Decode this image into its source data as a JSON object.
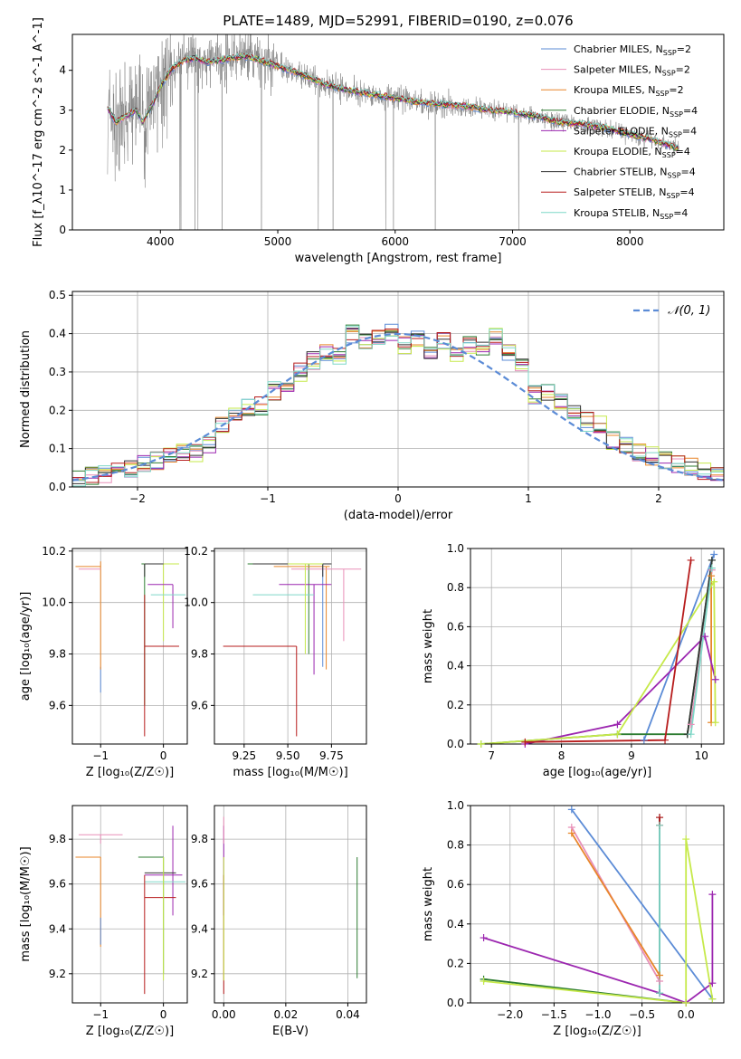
{
  "figure": {
    "title": "PLATE=1489, MJD=52991, FIBERID=0190, z=0.076"
  },
  "series_styles": [
    {
      "name": "Chabrier MILES",
      "nssp": "2",
      "color": "#5b8bd6"
    },
    {
      "name": "Salpeter MILES",
      "nssp": "2",
      "color": "#e88fb8"
    },
    {
      "name": "Kroupa MILES",
      "nssp": "2",
      "color": "#e8862a"
    },
    {
      "name": "Chabrier ELODIE",
      "nssp": "4",
      "color": "#2e7d32"
    },
    {
      "name": "Salpeter ELODIE",
      "nssp": "4",
      "color": "#9c27b0"
    },
    {
      "name": "Kroupa ELODIE",
      "nssp": "4",
      "color": "#c6e94a"
    },
    {
      "name": "Chabrier STELIB",
      "nssp": "4",
      "color": "#333333"
    },
    {
      "name": "Salpeter STELIB",
      "nssp": "4",
      "color": "#b71c1c"
    },
    {
      "name": "Kroupa STELIB",
      "nssp": "4",
      "color": "#7fd8c8"
    }
  ],
  "chart_data": [
    {
      "id": "spectrum",
      "type": "line",
      "xlabel": "wavelength [Angstrom, rest frame]",
      "ylabel": "Flux [f_λ10^-17 erg cm^-2 s^-1 A^-1]",
      "xlim": [
        3250,
        8800
      ],
      "ylim": [
        0,
        4.9
      ],
      "xticks": [
        4000,
        5000,
        6000,
        7000,
        8000
      ],
      "yticks": [
        0,
        1,
        2,
        3,
        4
      ],
      "data_color": "#808080",
      "model_continuum": {
        "x": [
          3550,
          3620,
          3700,
          3800,
          3850,
          3950,
          4000,
          4100,
          4200,
          4300,
          4400,
          4500,
          4600,
          4700,
          4800,
          4900,
          5000,
          5200,
          5400,
          5600,
          5800,
          6000,
          6200,
          6400,
          6600,
          6800,
          7000,
          7200,
          7400,
          7600,
          7800,
          8000,
          8200,
          8400
        ],
        "y": [
          3.05,
          2.7,
          2.85,
          3.0,
          2.7,
          3.25,
          3.6,
          4.05,
          4.25,
          4.3,
          4.2,
          4.25,
          4.3,
          4.35,
          4.3,
          4.2,
          4.1,
          3.9,
          3.65,
          3.5,
          3.4,
          3.3,
          3.2,
          3.15,
          3.1,
          3.0,
          2.95,
          2.85,
          2.7,
          2.65,
          2.55,
          2.4,
          2.25,
          2.05
        ]
      },
      "legend": "upper right"
    },
    {
      "id": "residual-histogram",
      "type": "line",
      "xlabel": "(data-model)/error",
      "ylabel": "Normed distribution",
      "xlim": [
        -2.5,
        2.5
      ],
      "ylim": [
        0,
        0.51
      ],
      "xticks": [
        -2,
        -1,
        0,
        1,
        2
      ],
      "yticks": [
        0.0,
        0.1,
        0.2,
        0.3,
        0.4,
        0.5
      ],
      "grid": true,
      "bins": [
        -2.5,
        -2.4,
        -2.3,
        -2.2,
        -2.1,
        -2.0,
        -1.9,
        -1.8,
        -1.7,
        -1.6,
        -1.5,
        -1.4,
        -1.3,
        -1.2,
        -1.1,
        -1.0,
        -0.9,
        -0.8,
        -0.7,
        -0.6,
        -0.5,
        -0.4,
        -0.3,
        -0.2,
        -0.1,
        0.0,
        0.1,
        0.2,
        0.3,
        0.4,
        0.5,
        0.6,
        0.7,
        0.8,
        0.9,
        1.0,
        1.1,
        1.2,
        1.3,
        1.4,
        1.5,
        1.6,
        1.7,
        1.8,
        1.9,
        2.0,
        2.1,
        2.2,
        2.3,
        2.4
      ],
      "hist_base": [
        0.02,
        0.03,
        0.035,
        0.04,
        0.045,
        0.06,
        0.07,
        0.08,
        0.09,
        0.09,
        0.11,
        0.16,
        0.19,
        0.21,
        0.21,
        0.25,
        0.27,
        0.3,
        0.33,
        0.35,
        0.34,
        0.4,
        0.38,
        0.39,
        0.4,
        0.37,
        0.39,
        0.36,
        0.38,
        0.35,
        0.37,
        0.36,
        0.39,
        0.35,
        0.32,
        0.24,
        0.25,
        0.22,
        0.2,
        0.17,
        0.16,
        0.12,
        0.11,
        0.09,
        0.08,
        0.07,
        0.06,
        0.05,
        0.04,
        0.03
      ],
      "reference_curve": {
        "name": "𝒩(0, 1)",
        "color": "#5b8bd6",
        "style": "dashed"
      },
      "legend": "upper right"
    },
    {
      "id": "age-vs-Z",
      "type": "scatter",
      "xlabel": "Z [log₁₀(Z/Z☉)]",
      "ylabel": "age  [log₁₀(age/yr)]",
      "xlim": [
        -1.45,
        0.38
      ],
      "ylim": [
        9.45,
        10.21
      ],
      "xticks": [
        -1,
        0
      ],
      "yticks": [
        9.6,
        9.8,
        10.0,
        10.2
      ],
      "grid": true,
      "points": [
        {
          "series": 0,
          "x": -1.0,
          "y": 9.75,
          "xerr": [
            0,
            0
          ],
          "yerr": [
            0.1,
            0
          ]
        },
        {
          "series": 2,
          "x": -1.0,
          "y": 10.14,
          "xerr": [
            0.4,
            0.0
          ],
          "yerr": [
            0.4,
            0.02
          ]
        },
        {
          "series": 1,
          "x": -1.0,
          "y": 10.13,
          "xerr": [
            0.35,
            0
          ],
          "yerr": [
            0,
            0
          ]
        },
        {
          "series": 3,
          "x": -0.3,
          "y": 10.15,
          "xerr": [
            0.05,
            0.35
          ],
          "yerr": [
            0.55,
            0
          ]
        },
        {
          "series": 5,
          "x": 0.0,
          "y": 10.15,
          "xerr": [
            0.3,
            0.25
          ],
          "yerr": [
            0.3,
            0
          ]
        },
        {
          "series": 4,
          "x": 0.15,
          "y": 10.07,
          "xerr": [
            0.4,
            0.0
          ],
          "yerr": [
            0.17,
            0.0
          ]
        },
        {
          "series": 8,
          "x": 0.1,
          "y": 10.03,
          "xerr": [
            0.3,
            0.25
          ],
          "yerr": [
            0,
            0
          ]
        },
        {
          "series": 7,
          "x": -0.3,
          "y": 9.83,
          "xerr": [
            0,
            0.55
          ],
          "yerr": [
            0.35,
            0.2
          ]
        },
        {
          "series": 6,
          "x": -0.3,
          "y": 10.15,
          "xerr": [
            0.0,
            0.3
          ],
          "yerr": [
            0.05,
            0
          ]
        }
      ]
    },
    {
      "id": "age-vs-mass",
      "type": "scatter",
      "xlabel": "mass [log₁₀(M/M☉)]",
      "ylabel": "",
      "xlim": [
        9.08,
        9.95
      ],
      "ylim": [
        9.45,
        10.21
      ],
      "xticks": [
        9.25,
        9.5,
        9.75
      ],
      "xticklabels": [
        "9.25",
        "9.50",
        "9.75"
      ],
      "yticks": [
        9.6,
        9.8,
        10.0,
        10.2
      ],
      "grid": true,
      "points": [
        {
          "series": 3,
          "x": 9.62,
          "y": 10.15,
          "xerr": [
            0.35,
            0.1
          ],
          "yerr": [
            0.35,
            0
          ]
        },
        {
          "series": 2,
          "x": 9.72,
          "y": 10.14,
          "xerr": [
            0.3,
            0.02
          ],
          "yerr": [
            0.4,
            0
          ]
        },
        {
          "series": 1,
          "x": 9.82,
          "y": 10.13,
          "xerr": [
            0.3,
            0.1
          ],
          "yerr": [
            0.28,
            0.0
          ]
        },
        {
          "series": 0,
          "x": 9.7,
          "y": 10.05,
          "xerr": [
            0,
            0
          ],
          "yerr": [
            0.3,
            0.1
          ]
        },
        {
          "series": 4,
          "x": 9.65,
          "y": 10.07,
          "xerr": [
            0.2,
            0.1
          ],
          "yerr": [
            0.35,
            0
          ]
        },
        {
          "series": 8,
          "x": 9.6,
          "y": 10.03,
          "xerr": [
            0.3,
            0.05
          ],
          "yerr": [
            0,
            0
          ]
        },
        {
          "series": 7,
          "x": 9.55,
          "y": 9.83,
          "xerr": [
            0.42,
            0.0
          ],
          "yerr": [
            0.35,
            0.0
          ]
        },
        {
          "series": 6,
          "x": 9.7,
          "y": 10.15,
          "xerr": [
            0.4,
            0.05
          ],
          "yerr": [
            0.05,
            0
          ]
        },
        {
          "series": 5,
          "x": 9.6,
          "y": 10.15,
          "xerr": [
            0.1,
            0.1
          ],
          "yerr": [
            0.35,
            0
          ]
        }
      ]
    },
    {
      "id": "mass-weight-vs-age",
      "type": "line",
      "xlabel": "age  [log₁₀(age/yr)]",
      "ylabel": "mass weight",
      "xlim": [
        6.7,
        10.32
      ],
      "ylim": [
        0,
        1.0
      ],
      "xticks": [
        7,
        8,
        9,
        10
      ],
      "yticks": [
        0.0,
        0.2,
        0.4,
        0.6,
        0.8,
        1.0
      ],
      "grid": true,
      "series": [
        {
          "series": 0,
          "x": [
            9.18,
            10.18
          ],
          "y": [
            0.02,
            0.97
          ]
        },
        {
          "series": 1,
          "x": [
            9.85,
            10.15
          ],
          "y": [
            0.1,
            0.89
          ]
        },
        {
          "series": 2,
          "x": [
            10.14,
            10.14
          ],
          "y": [
            0.86,
            0.11
          ]
        },
        {
          "series": 3,
          "x": [
            6.85,
            8.8,
            9.8,
            10.15
          ],
          "y": [
            0.0,
            0.05,
            0.05,
            0.94
          ]
        },
        {
          "series": 4,
          "x": [
            7.48,
            8.8,
            10.05,
            10.2
          ],
          "y": [
            0.0,
            0.1,
            0.55,
            0.33
          ]
        },
        {
          "series": 5,
          "x": [
            6.85,
            8.8,
            10.18,
            10.2
          ],
          "y": [
            0.0,
            0.05,
            0.83,
            0.11
          ]
        },
        {
          "series": 6,
          "x": [
            9.8,
            10.15
          ],
          "y": [
            0.05,
            0.94
          ]
        },
        {
          "series": 7,
          "x": [
            7.48,
            9.48,
            9.85
          ],
          "y": [
            0.01,
            0.02,
            0.94
          ]
        },
        {
          "series": 8,
          "x": [
            9.85,
            10.15
          ],
          "y": [
            0.05,
            0.9
          ]
        }
      ]
    },
    {
      "id": "mass-vs-Z",
      "type": "scatter",
      "xlabel": "Z [log₁₀(Z/Z☉)]",
      "ylabel": "mass [log₁₀(M/M☉)]",
      "xlim": [
        -1.45,
        0.38
      ],
      "ylim": [
        9.07,
        9.95
      ],
      "xticks": [
        -1,
        0
      ],
      "yticks": [
        9.2,
        9.4,
        9.6,
        9.8
      ],
      "grid": true,
      "points": [
        {
          "series": 1,
          "x": -1.0,
          "y": 9.82,
          "xerr": [
            0.35,
            0.35
          ],
          "yerr": [
            0.04,
            0
          ]
        },
        {
          "series": 2,
          "x": -1.0,
          "y": 9.72,
          "xerr": [
            0.4,
            0.0
          ],
          "yerr": [
            0.4,
            0
          ]
        },
        {
          "series": 0,
          "x": -1.0,
          "y": 9.45,
          "xerr": [
            0,
            0
          ],
          "yerr": [
            0.12,
            0
          ]
        },
        {
          "series": 3,
          "x": 0.0,
          "y": 9.72,
          "xerr": [
            0.4,
            0.0
          ],
          "yerr": [
            0.52,
            0
          ]
        },
        {
          "series": 4,
          "x": 0.15,
          "y": 9.64,
          "xerr": [
            0.45,
            0.15
          ],
          "yerr": [
            0.18,
            0.22
          ]
        },
        {
          "series": 8,
          "x": 0.05,
          "y": 9.61,
          "xerr": [
            0.35,
            0.3
          ],
          "yerr": [
            0,
            0
          ]
        },
        {
          "series": 7,
          "x": -0.3,
          "y": 9.54,
          "xerr": [
            0,
            0.5
          ],
          "yerr": [
            0.43,
            0.1
          ]
        },
        {
          "series": 6,
          "x": -0.3,
          "y": 9.65,
          "xerr": [
            0,
            0.5
          ],
          "yerr": [
            0,
            0
          ]
        },
        {
          "series": 5,
          "x": 0.0,
          "y": 9.72,
          "xerr": [
            0,
            0
          ],
          "yerr": [
            0.55,
            0
          ]
        }
      ]
    },
    {
      "id": "mass-vs-EBV",
      "type": "scatter",
      "xlabel": "E(B-V)",
      "ylabel": "",
      "xlim": [
        -0.003,
        0.046
      ],
      "ylim": [
        9.07,
        9.95
      ],
      "xticks": [
        0.0,
        0.02,
        0.04
      ],
      "xticklabels": [
        "0.00",
        "0.02",
        "0.04"
      ],
      "yticks": [
        9.2,
        9.4,
        9.6,
        9.8
      ],
      "grid": true,
      "points": [
        {
          "series": 4,
          "x": 0.0,
          "y": 9.64,
          "xerr": [
            0,
            0
          ],
          "yerr": [
            0.18,
            0.22
          ]
        },
        {
          "series": 7,
          "x": 0.0,
          "y": 9.54,
          "xerr": [
            0,
            0
          ],
          "yerr": [
            0.43,
            0.1
          ]
        },
        {
          "series": 1,
          "x": 0.0,
          "y": 9.82,
          "xerr": [
            0,
            0
          ],
          "yerr": [
            0.04,
            0.08
          ]
        },
        {
          "series": 3,
          "x": 0.043,
          "y": 9.45,
          "xerr": [
            0,
            0
          ],
          "yerr": [
            0.27,
            0.27
          ]
        },
        {
          "series": 5,
          "x": 0.0,
          "y": 9.72,
          "xerr": [
            0,
            0
          ],
          "yerr": [
            0.55,
            0
          ]
        }
      ]
    },
    {
      "id": "mass-weight-vs-Z",
      "type": "line",
      "xlabel": "Z [log₁₀(Z/Z☉)]",
      "ylabel": "mass weight",
      "xlim": [
        -2.45,
        0.43
      ],
      "ylim": [
        0,
        1.0
      ],
      "xticks": [
        -2.0,
        -1.5,
        -1.0,
        -0.5,
        0.0
      ],
      "xticklabels": [
        "−2.0",
        "−1.5",
        "−1.0",
        "−0.5",
        "0.0"
      ],
      "yticks": [
        0.0,
        0.2,
        0.4,
        0.6,
        0.8,
        1.0
      ],
      "grid": true,
      "series": [
        {
          "series": 0,
          "x": [
            -1.3,
            0.3
          ],
          "y": [
            0.98,
            0.02
          ]
        },
        {
          "series": 1,
          "x": [
            -1.3,
            -0.3
          ],
          "y": [
            0.89,
            0.11
          ]
        },
        {
          "series": 2,
          "x": [
            -1.3,
            -0.3
          ],
          "y": [
            0.86,
            0.14
          ]
        },
        {
          "series": 3,
          "x": [
            -2.3,
            0.0
          ],
          "y": [
            0.12,
            0.0
          ]
        },
        {
          "series": 4,
          "x": [
            -2.3,
            -0.3,
            0.0,
            0.3,
            0.3
          ],
          "y": [
            0.33,
            0.05,
            0.0,
            0.1,
            0.55
          ]
        },
        {
          "series": 5,
          "x": [
            -2.3,
            0.0,
            0.0,
            0.3
          ],
          "y": [
            0.11,
            0.0,
            0.83,
            0.02
          ]
        },
        {
          "series": 6,
          "x": [
            -0.3,
            -0.3
          ],
          "y": [
            0.94,
            0.05
          ]
        },
        {
          "series": 7,
          "x": [
            -0.3,
            -0.3
          ],
          "y": [
            0.94,
            0.9
          ]
        },
        {
          "series": 8,
          "x": [
            -0.3,
            -0.3
          ],
          "y": [
            0.9,
            0.05
          ]
        }
      ]
    }
  ]
}
